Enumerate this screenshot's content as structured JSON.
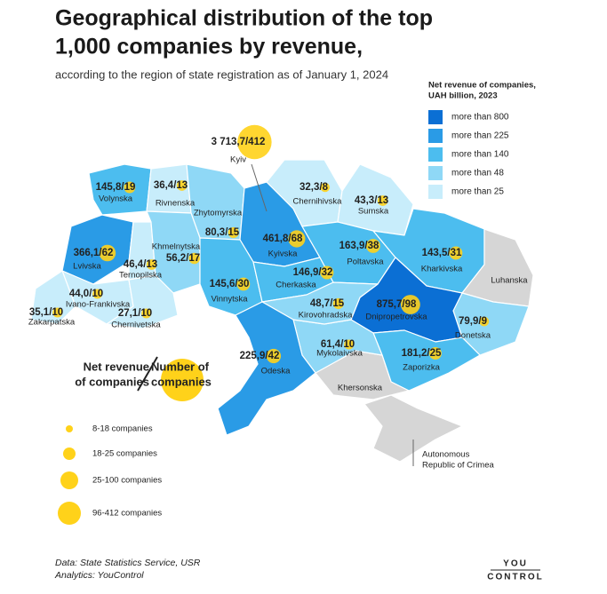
{
  "header": {
    "title_lines": [
      "Geographical distribution of the top",
      "1,000 companies by revenue,"
    ],
    "subtitle": "according to the region of state registration as of January 1, 2024"
  },
  "color_legend": {
    "title_lines": [
      "Net revenue of companies,",
      "UAH billion, 2023"
    ],
    "items": [
      {
        "label": "more than 800",
        "color": "#0b6fd4"
      },
      {
        "label": "more than 225",
        "color": "#2a9be6"
      },
      {
        "label": "more than 140",
        "color": "#4cbdef"
      },
      {
        "label": "more than 48",
        "color": "#8fd8f6"
      },
      {
        "label": "more than 25",
        "color": "#c8edfb"
      }
    ]
  },
  "key": {
    "left_lines": [
      "Net revenue",
      "of companies"
    ],
    "right_lines": [
      "Number of",
      "companies"
    ]
  },
  "size_legend": [
    "8-18 companies",
    "18-25 companies",
    "25-100 companies",
    "96-412 companies"
  ],
  "regions": [
    {
      "name": "Kyiv",
      "label": "3 713,7/412",
      "companies": 412,
      "color": "#0b6fd4"
    },
    {
      "name": "Volynska",
      "label": "145,8/19",
      "companies": 19,
      "color": "#4cbdef"
    },
    {
      "name": "Rivnenska",
      "label": "36,4/13",
      "companies": 13,
      "color": "#c8edfb"
    },
    {
      "name": "Zhytomyrska",
      "label": "80,3/15",
      "companies": 15,
      "color": "#8fd8f6"
    },
    {
      "name": "Kyivska",
      "label": "461,8/68",
      "companies": 68,
      "color": "#2a9be6"
    },
    {
      "name": "Chernihivska",
      "label": "32,3/8",
      "companies": 8,
      "color": "#c8edfb"
    },
    {
      "name": "Sumska",
      "label": "43,3/13",
      "companies": 13,
      "color": "#c8edfb"
    },
    {
      "name": "Lvivska",
      "label": "366,1/62",
      "companies": 62,
      "color": "#2a9be6"
    },
    {
      "name": "Ternopilska",
      "label": "46,4/13",
      "companies": 13,
      "color": "#c8edfb"
    },
    {
      "name": "Khmelnytska",
      "label": "56,2/17",
      "companies": 17,
      "color": "#8fd8f6"
    },
    {
      "name": "Vinnytska",
      "label": "145,6/30",
      "companies": 30,
      "color": "#4cbdef"
    },
    {
      "name": "Cherkaska",
      "label": "146,9/32",
      "companies": 32,
      "color": "#4cbdef"
    },
    {
      "name": "Poltavska",
      "label": "163,9/38",
      "companies": 38,
      "color": "#4cbdef"
    },
    {
      "name": "Kharkivska",
      "label": "143,5/31",
      "companies": 31,
      "color": "#4cbdef"
    },
    {
      "name": "Luhanska",
      "color": "#d6d6d6"
    },
    {
      "name": "Donetska",
      "label": "79,9/9",
      "companies": 9,
      "color": "#8fd8f6"
    },
    {
      "name": "Dnipropetrovska",
      "label": "875,7/98",
      "companies": 98,
      "color": "#0b6fd4"
    },
    {
      "name": "Zaporizka",
      "label": "181,2/25",
      "companies": 25,
      "color": "#4cbdef"
    },
    {
      "name": "Khersonska",
      "color": "#d6d6d6"
    },
    {
      "name": "Mykolaivska",
      "label": "61,4/10",
      "companies": 10,
      "color": "#8fd8f6"
    },
    {
      "name": "Kirovohradska",
      "label": "48,7/15",
      "companies": 15,
      "color": "#8fd8f6"
    },
    {
      "name": "Odeska",
      "label": "225,9/42",
      "companies": 42,
      "color": "#2a9be6"
    },
    {
      "name": "Ivano-Frankivska",
      "label": "44,0/10",
      "companies": 10,
      "color": "#c8edfb"
    },
    {
      "name": "Zakarpatska",
      "label": "35,1/10",
      "companies": 10,
      "color": "#c8edfb"
    },
    {
      "name": "Chernivetska",
      "label": "27,1/10",
      "companies": 10,
      "color": "#c8edfb"
    },
    {
      "name_lines": [
        "Autonomous",
        "Republic of Crimea"
      ],
      "color": "#d6d6d6"
    }
  ],
  "footer": {
    "source_lines": [
      "Data: State Statistics Service, USR",
      "Analytics: YouControl"
    ],
    "logo_lines": [
      "YOU",
      "CONTROL"
    ]
  }
}
